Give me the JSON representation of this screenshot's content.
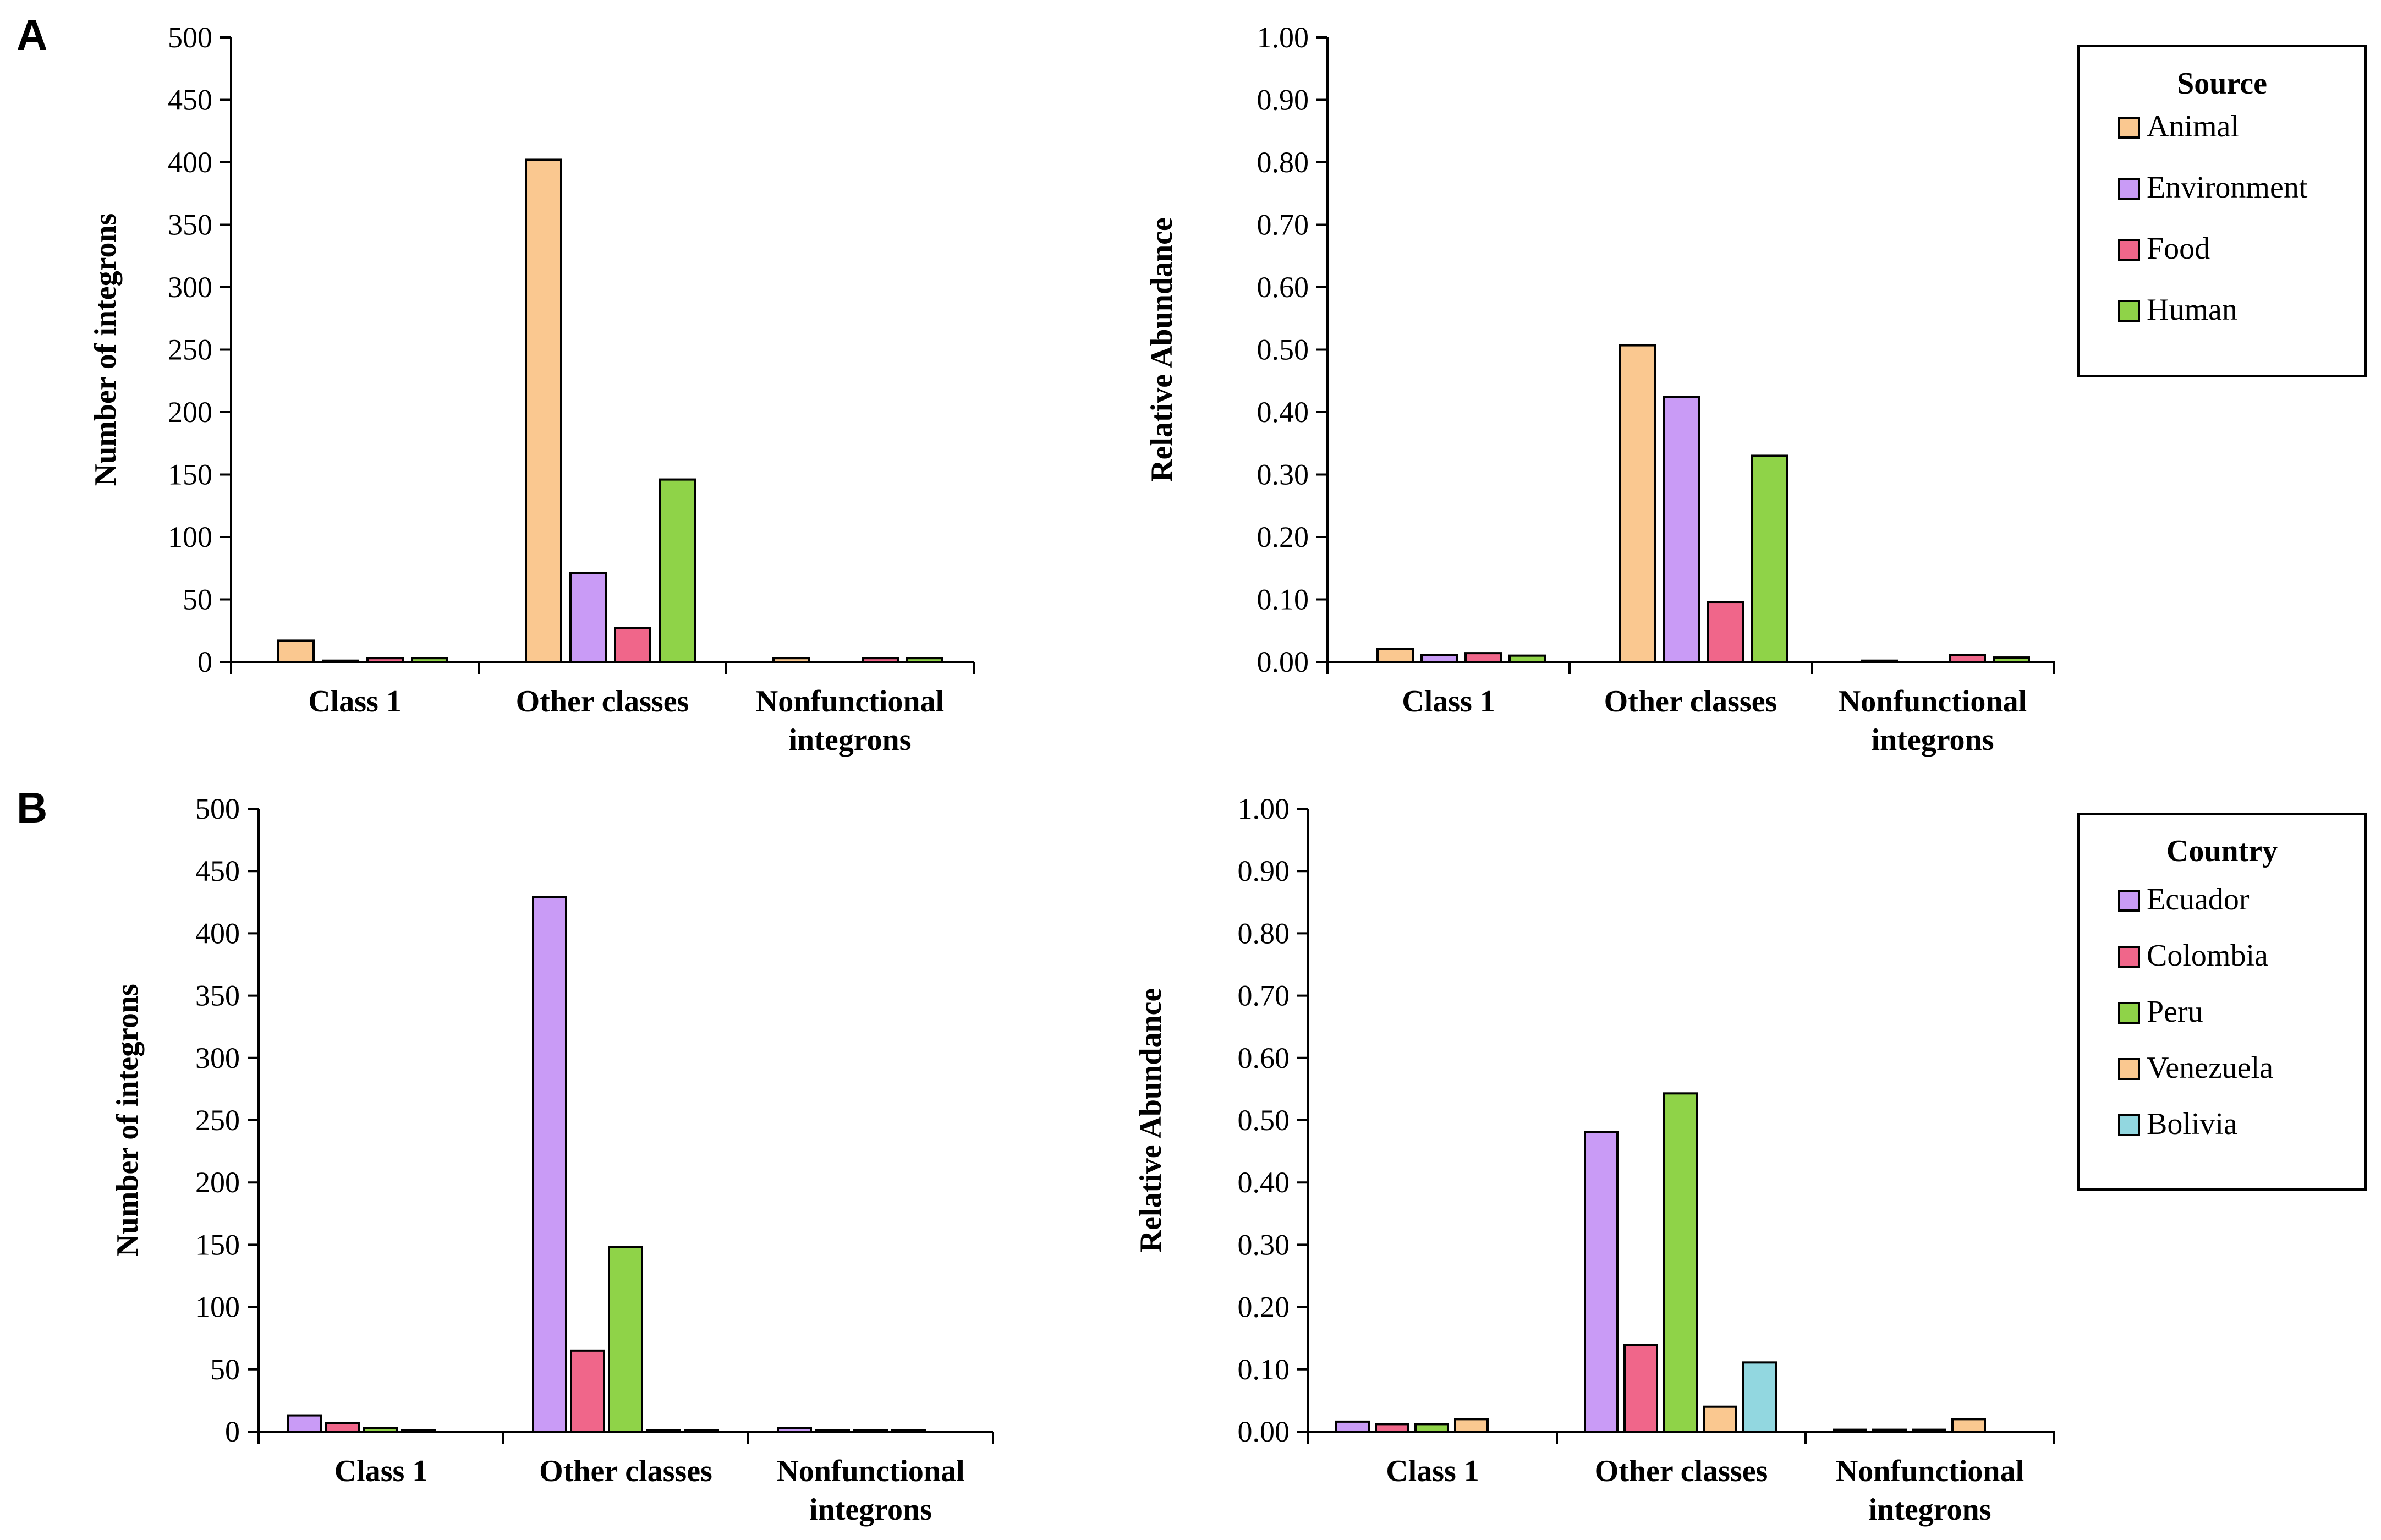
{
  "panels": [
    {
      "label": "A"
    },
    {
      "label": "B"
    }
  ],
  "colors": {
    "Animal": "#fac890",
    "Environment": "#c99bf6",
    "Food": "#f0668a",
    "Human": "#8fd348",
    "Ecuador": "#c99bf6",
    "Colombia": "#f0668a",
    "Peru": "#8fd348",
    "Venezuela": "#fac890",
    "Bolivia": "#92d7e0"
  },
  "legends": [
    {
      "title": "Source",
      "entries": [
        "Animal",
        "Environment",
        "Food",
        "Human"
      ]
    },
    {
      "title": "Country",
      "entries": [
        "Ecuador",
        "Colombia",
        "Peru",
        "Venezuela",
        "Bolivia"
      ]
    }
  ],
  "chart_data": [
    {
      "type": "bar",
      "panel": "A",
      "categories": [
        "Class 1",
        "Other classes",
        "Nonfunctional integrons"
      ],
      "ylabel": "Number of integrons",
      "ylim": [
        0,
        500
      ],
      "yticks": [
        "0",
        "50",
        "100",
        "150",
        "200",
        "250",
        "300",
        "350",
        "400",
        "450",
        "500"
      ],
      "series": [
        {
          "name": "Animal",
          "values": [
            17,
            402,
            3
          ]
        },
        {
          "name": "Environment",
          "values": [
            1,
            71,
            0
          ]
        },
        {
          "name": "Food",
          "values": [
            3,
            27,
            3
          ]
        },
        {
          "name": "Human",
          "values": [
            3,
            146,
            3
          ]
        }
      ]
    },
    {
      "type": "bar",
      "panel": "A",
      "categories": [
        "Class 1",
        "Other classes",
        "Nonfunctional integrons"
      ],
      "ylabel": "Relative Abundance",
      "ylim": [
        0,
        1
      ],
      "yticks": [
        "0.00",
        "0.10",
        "0.20",
        "0.30",
        "0.40",
        "0.50",
        "0.60",
        "0.70",
        "0.80",
        "0.90",
        "1.00"
      ],
      "series": [
        {
          "name": "Animal",
          "values": [
            0.021,
            0.507,
            0.002
          ]
        },
        {
          "name": "Environment",
          "values": [
            0.011,
            0.424,
            0
          ]
        },
        {
          "name": "Food",
          "values": [
            0.014,
            0.096,
            0.011
          ]
        },
        {
          "name": "Human",
          "values": [
            0.01,
            0.33,
            0.007
          ]
        }
      ]
    },
    {
      "type": "bar",
      "panel": "B",
      "categories": [
        "Class 1",
        "Other classes",
        "Nonfunctional integrons"
      ],
      "ylabel": "Number of integrons",
      "ylim": [
        0,
        500
      ],
      "yticks": [
        "0",
        "50",
        "100",
        "150",
        "200",
        "250",
        "300",
        "350",
        "400",
        "450",
        "500"
      ],
      "series": [
        {
          "name": "Ecuador",
          "values": [
            13,
            429,
            3
          ]
        },
        {
          "name": "Colombia",
          "values": [
            7,
            65,
            1
          ]
        },
        {
          "name": "Peru",
          "values": [
            3,
            148,
            1
          ]
        },
        {
          "name": "Venezuela",
          "values": [
            1,
            1,
            1
          ]
        },
        {
          "name": "Bolivia",
          "values": [
            0,
            1,
            0
          ]
        }
      ]
    },
    {
      "type": "bar",
      "panel": "B",
      "categories": [
        "Class 1",
        "Other classes",
        "Nonfunctional integrons"
      ],
      "ylabel": "Relative Abundance",
      "ylim": [
        0,
        1
      ],
      "yticks": [
        "0.00",
        "0.10",
        "0.20",
        "0.30",
        "0.40",
        "0.50",
        "0.60",
        "0.70",
        "0.80",
        "0.90",
        "1.00"
      ],
      "series": [
        {
          "name": "Ecuador",
          "values": [
            0.016,
            0.481,
            0.003
          ]
        },
        {
          "name": "Colombia",
          "values": [
            0.012,
            0.139,
            0.003
          ]
        },
        {
          "name": "Peru",
          "values": [
            0.012,
            0.543,
            0.003
          ]
        },
        {
          "name": "Venezuela",
          "values": [
            0.02,
            0.04,
            0.02
          ]
        },
        {
          "name": "Bolivia",
          "values": [
            0,
            0.111,
            0
          ]
        }
      ]
    }
  ]
}
